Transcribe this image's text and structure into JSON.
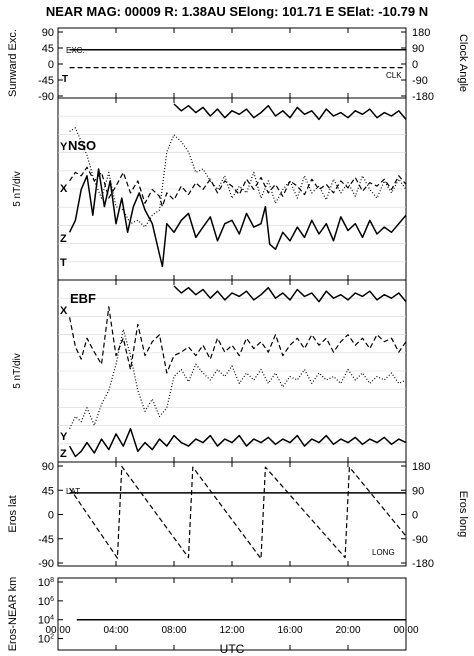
{
  "title": "NEAR MAG: 00009  R: 1.38AU  SElong: 101.71 E  SElat: -10.79 N",
  "xaxis": {
    "label": "UTC",
    "ticks": [
      "00:00",
      "04:00",
      "08:00",
      "12:00",
      "16:00",
      "20:00",
      "00:00"
    ]
  },
  "panels": {
    "p1": {
      "ylabel_left": "Sunward Exc.",
      "ylabel_right": "Clock Angle",
      "left_ticks": [
        "90",
        "45",
        "0",
        "-45",
        "-90"
      ],
      "right_ticks": [
        "180",
        "90",
        "0",
        "-90",
        "-180"
      ],
      "labels": {
        "exc": "EXC.",
        "clk": "CLK",
        "t": "T"
      }
    },
    "p2": {
      "ylabel_left": "5 nT/div",
      "labels": {
        "y": "Y",
        "nso": "NSO",
        "x": "X",
        "z": "Z",
        "t": "T"
      }
    },
    "p3": {
      "ylabel_left": "5 nT/div",
      "labels": {
        "x": "X",
        "ebf": "EBF",
        "y": "Y",
        "z": "Z"
      }
    },
    "p4": {
      "ylabel_left": "Eros lat",
      "ylabel_right": "Eros long",
      "left_ticks": [
        "90",
        "45",
        "0",
        "-45",
        "-90"
      ],
      "right_ticks": [
        "180",
        "90",
        "0",
        "-90",
        "-180"
      ],
      "labels": {
        "lat": "LAT",
        "long": "LONG"
      }
    },
    "p5": {
      "ylabel_left": "Eros-NEAR km",
      "left_ticks": [
        "10^8",
        "10^6",
        "10^4",
        "10^2"
      ]
    }
  },
  "chart_data": {
    "type": "line",
    "x_unit": "hours UTC",
    "x_range": [
      0,
      24
    ],
    "panels": [
      {
        "id": "sunward_clock",
        "left_ylim": [
          -90,
          90
        ],
        "right_ylim": [
          -180,
          180
        ],
        "series": [
          {
            "name": "EXC.",
            "style": "solid",
            "axis": "left",
            "x": [
              0.8,
              24
            ],
            "y": [
              40,
              40
            ]
          },
          {
            "name": "CLK",
            "style": "dashed",
            "axis": "left",
            "x": [
              0.8,
              24
            ],
            "y": [
              -10,
              -10
            ]
          }
        ]
      },
      {
        "id": "nso",
        "ylim": [
          0,
          1
        ],
        "series": [
          {
            "name": "X",
            "style": "dashed",
            "x": [
              0.8,
              1.2,
              1.6,
              2.0,
              2.5,
              3.0,
              3.5,
              4.0,
              4.5,
              5.0,
              5.5,
              6.0,
              6.5,
              7.0,
              7.2,
              7.5,
              8.0,
              8.5,
              9.0,
              9.5,
              10.0,
              10.5,
              11.0,
              11.5,
              12.0,
              12.5,
              13.0,
              13.5,
              14.0,
              14.5,
              15.0,
              15.5,
              16.0,
              16.5,
              17.0,
              17.5,
              18.0,
              18.5,
              19.0,
              19.5,
              20.0,
              20.5,
              21.0,
              21.5,
              22.0,
              22.5,
              23.0,
              23.5,
              24.0
            ],
            "y": [
              0.55,
              0.6,
              0.58,
              0.63,
              0.55,
              0.6,
              0.45,
              0.52,
              0.6,
              0.48,
              0.55,
              0.42,
              0.5,
              0.46,
              0.4,
              0.48,
              0.44,
              0.52,
              0.47,
              0.54,
              0.5,
              0.56,
              0.48,
              0.55,
              0.52,
              0.47,
              0.56,
              0.5,
              0.57,
              0.48,
              0.53,
              0.46,
              0.55,
              0.52,
              0.47,
              0.56,
              0.5,
              0.53,
              0.48,
              0.55,
              0.51,
              0.57,
              0.49,
              0.54,
              0.52,
              0.56,
              0.5,
              0.58,
              0.53
            ]
          },
          {
            "name": "Y",
            "style": "dotted",
            "x": [
              0.8,
              1.2,
              1.6,
              2.0,
              2.5,
              3.0,
              3.5,
              4.0,
              4.5,
              5.0,
              5.5,
              6.0,
              6.5,
              7.0,
              7.5,
              8.0,
              8.5,
              9.0,
              9.5,
              10.0,
              10.5,
              11.0,
              11.5,
              12.0,
              12.5,
              13.0,
              13.5,
              14.0,
              14.5,
              15.0,
              15.5,
              16.0,
              16.5,
              17.0,
              17.5,
              18.0,
              18.5,
              19.0,
              19.5,
              20.0,
              20.5,
              21.0,
              21.5,
              22.0,
              22.5,
              23.0,
              23.5,
              24.0
            ],
            "y": [
              0.84,
              0.86,
              0.78,
              0.7,
              0.55,
              0.45,
              0.6,
              0.4,
              0.38,
              0.3,
              0.32,
              0.28,
              0.35,
              0.38,
              0.72,
              0.82,
              0.78,
              0.72,
              0.6,
              0.62,
              0.55,
              0.5,
              0.58,
              0.45,
              0.52,
              0.48,
              0.6,
              0.45,
              0.55,
              0.42,
              0.5,
              0.55,
              0.45,
              0.58,
              0.48,
              0.52,
              0.44,
              0.56,
              0.48,
              0.54,
              0.46,
              0.58,
              0.5,
              0.45,
              0.55,
              0.48,
              0.56,
              0.5
            ]
          },
          {
            "name": "Z",
            "style": "solid",
            "x": [
              0.8,
              1.2,
              1.6,
              2.0,
              2.4,
              2.8,
              3.2,
              3.6,
              4.0,
              4.4,
              4.8,
              5.2,
              5.6,
              6.0,
              6.5,
              7.0,
              7.2,
              7.5,
              8.0,
              8.5,
              9.0,
              9.5,
              10.0,
              10.5,
              11.0,
              11.5,
              12.0,
              12.5,
              13.0,
              13.5,
              14.0,
              14.3,
              14.6,
              15.0,
              15.5,
              16.0,
              16.5,
              17.0,
              17.5,
              18.0,
              18.5,
              19.0,
              19.5,
              20.0,
              20.5,
              21.0,
              21.5,
              22.0,
              22.5,
              23.0,
              23.5,
              24.0
            ],
            "y": [
              0.25,
              0.32,
              0.5,
              0.58,
              0.35,
              0.62,
              0.4,
              0.55,
              0.3,
              0.45,
              0.25,
              0.4,
              0.48,
              0.38,
              0.3,
              0.12,
              0.05,
              0.3,
              0.25,
              0.32,
              0.36,
              0.22,
              0.28,
              0.34,
              0.2,
              0.3,
              0.32,
              0.24,
              0.36,
              0.28,
              0.3,
              0.4,
              0.18,
              0.15,
              0.25,
              0.2,
              0.28,
              0.22,
              0.32,
              0.24,
              0.3,
              0.2,
              0.34,
              0.26,
              0.3,
              0.22,
              0.32,
              0.24,
              0.28,
              0.25,
              0.3,
              0.35
            ]
          },
          {
            "name": "T",
            "style": "solid",
            "x": [
              8.0,
              8.5,
              9.0,
              9.5,
              10.0,
              10.5,
              11.0,
              11.5,
              12.0,
              12.5,
              13.0,
              13.5,
              14.0,
              14.5,
              15.0,
              15.5,
              16.0,
              16.5,
              17.0,
              17.5,
              18.0,
              18.5,
              19.0,
              19.5,
              20.0,
              20.5,
              21.0,
              21.5,
              22.0,
              22.5,
              23.0,
              23.5,
              24.0
            ],
            "y": [
              1.0,
              0.96,
              0.99,
              0.95,
              0.98,
              0.93,
              0.97,
              0.92,
              0.96,
              0.94,
              0.97,
              0.92,
              0.95,
              0.99,
              0.93,
              0.96,
              0.92,
              0.98,
              0.94,
              0.96,
              0.91,
              0.97,
              0.93,
              0.95,
              0.92,
              0.96,
              0.94,
              0.97,
              0.92,
              0.95,
              0.93,
              0.96,
              0.91
            ]
          }
        ]
      },
      {
        "id": "ebf",
        "ylim": [
          0,
          1
        ],
        "series": [
          {
            "name": "X",
            "style": "dashed",
            "x": [
              0.8,
              1.2,
              1.6,
              2.0,
              2.5,
              3.0,
              3.5,
              4.0,
              4.5,
              5.0,
              5.5,
              6.0,
              6.5,
              7.0,
              7.5,
              8.0,
              8.5,
              9.0,
              9.5,
              10.0,
              10.5,
              11.0,
              11.5,
              12.0,
              12.5,
              13.0,
              13.5,
              14.0,
              14.5,
              15.0,
              15.5,
              16.0,
              16.5,
              17.0,
              17.5,
              18.0,
              18.5,
              19.0,
              19.5,
              20.0,
              20.5,
              21.0,
              21.5,
              22.0,
              22.5,
              23.0,
              23.5,
              24.0
            ],
            "y": [
              0.82,
              0.65,
              0.58,
              0.7,
              0.62,
              0.55,
              0.88,
              0.6,
              0.7,
              0.52,
              0.78,
              0.6,
              0.68,
              0.72,
              0.5,
              0.6,
              0.62,
              0.65,
              0.6,
              0.66,
              0.58,
              0.7,
              0.62,
              0.66,
              0.6,
              0.7,
              0.64,
              0.68,
              0.62,
              0.72,
              0.6,
              0.66,
              0.7,
              0.64,
              0.72,
              0.66,
              0.7,
              0.62,
              0.68,
              0.72,
              0.66,
              0.7,
              0.64,
              0.72,
              0.68,
              0.7,
              0.62,
              0.68
            ]
          },
          {
            "name": "Y",
            "style": "dotted",
            "x": [
              0.8,
              1.2,
              1.6,
              2.0,
              2.5,
              3.0,
              3.5,
              4.0,
              4.5,
              5.0,
              5.5,
              6.0,
              6.5,
              7.0,
              7.5,
              8.0,
              8.5,
              9.0,
              9.5,
              10.0,
              10.5,
              11.0,
              11.5,
              12.0,
              12.5,
              13.0,
              13.5,
              14.0,
              14.5,
              15.0,
              15.5,
              16.0,
              16.5,
              17.0,
              17.5,
              18.0,
              18.5,
              19.0,
              19.5,
              20.0,
              20.5,
              21.0,
              21.5,
              22.0,
              22.5,
              23.0,
              23.5,
              24.0
            ],
            "y": [
              0.18,
              0.25,
              0.22,
              0.3,
              0.2,
              0.32,
              0.4,
              0.55,
              0.75,
              0.6,
              0.4,
              0.28,
              0.35,
              0.25,
              0.3,
              0.48,
              0.52,
              0.45,
              0.55,
              0.5,
              0.46,
              0.52,
              0.48,
              0.54,
              0.44,
              0.5,
              0.46,
              0.52,
              0.44,
              0.5,
              0.42,
              0.48,
              0.46,
              0.52,
              0.44,
              0.5,
              0.46,
              0.48,
              0.44,
              0.52,
              0.46,
              0.5,
              0.44,
              0.48,
              0.46,
              0.5,
              0.44,
              0.46
            ]
          },
          {
            "name": "Z",
            "style": "solid",
            "x": [
              0.8,
              1.2,
              1.6,
              2.0,
              2.5,
              3.0,
              3.5,
              4.0,
              4.5,
              5.0,
              5.5,
              6.0,
              6.5,
              7.0,
              7.5,
              8.0,
              8.5,
              9.0,
              9.5,
              10.0,
              10.5,
              11.0,
              11.5,
              12.0,
              12.5,
              13.0,
              13.5,
              14.0,
              14.5,
              15.0,
              15.5,
              16.0,
              16.5,
              17.0,
              17.5,
              18.0,
              18.5,
              19.0,
              19.5,
              20.0,
              20.5,
              21.0,
              21.5,
              22.0,
              22.5,
              23.0,
              23.5,
              24.0
            ],
            "y": [
              0.08,
              0.02,
              0.05,
              0.1,
              0.04,
              0.12,
              0.06,
              0.15,
              0.08,
              0.18,
              0.05,
              0.1,
              0.06,
              0.12,
              0.08,
              0.14,
              0.1,
              0.08,
              0.12,
              0.1,
              0.14,
              0.08,
              0.12,
              0.1,
              0.14,
              0.08,
              0.12,
              0.1,
              0.13,
              0.09,
              0.12,
              0.1,
              0.14,
              0.08,
              0.12,
              0.1,
              0.14,
              0.09,
              0.12,
              0.1,
              0.13,
              0.09,
              0.12,
              0.1,
              0.13,
              0.09,
              0.12,
              0.1
            ]
          },
          {
            "name": "T",
            "style": "solid",
            "x": [
              8.0,
              8.5,
              9.0,
              9.5,
              10.0,
              10.5,
              11.0,
              11.5,
              12.0,
              12.5,
              13.0,
              13.5,
              14.0,
              14.5,
              15.0,
              15.5,
              16.0,
              16.5,
              17.0,
              17.5,
              18.0,
              18.5,
              19.0,
              19.5,
              20.0,
              20.5,
              21.0,
              21.5,
              22.0,
              22.5,
              23.0,
              23.5,
              24.0
            ],
            "y": [
              1.0,
              0.96,
              0.99,
              0.95,
              0.98,
              0.93,
              0.97,
              0.92,
              0.96,
              0.94,
              0.97,
              0.92,
              0.95,
              0.99,
              0.93,
              0.96,
              0.92,
              0.98,
              0.94,
              0.96,
              0.91,
              0.97,
              0.93,
              0.95,
              0.92,
              0.96,
              0.94,
              0.97,
              0.92,
              0.95,
              0.93,
              0.96,
              0.91
            ]
          }
        ]
      },
      {
        "id": "eros_lat_long",
        "left_ylim": [
          -90,
          90
        ],
        "right_ylim": [
          -180,
          180
        ],
        "series": [
          {
            "name": "LAT",
            "style": "solid",
            "axis": "left",
            "x": [
              0.8,
              24
            ],
            "y": [
              40,
              40
            ]
          },
          {
            "name": "LONG",
            "style": "dashed",
            "axis": "right",
            "x": [
              0.8,
              4.1,
              4.4,
              9.0,
              9.3,
              14.0,
              14.3,
              19.8,
              20.1,
              24
            ],
            "y": [
              98,
              -162,
              178,
              -160,
              176,
              -164,
              176,
              -160,
              176,
              -80
            ]
          }
        ]
      },
      {
        "id": "eros_near_km",
        "yscale": "log",
        "ylim": [
          10,
          100000000.0
        ],
        "series": [
          {
            "name": "Eros-NEAR",
            "style": "solid",
            "x": [
              1.3,
              24
            ],
            "y": [
              10000,
              10000
            ]
          }
        ]
      }
    ]
  }
}
